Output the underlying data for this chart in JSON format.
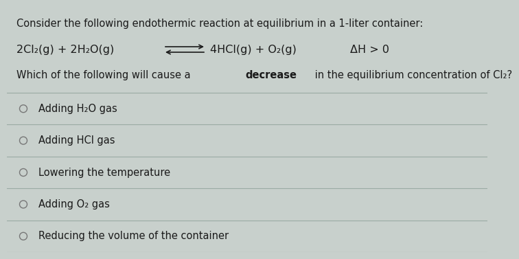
{
  "bg_color": "#c8d0cc",
  "text_color": "#1a1a1a",
  "header_text": "Consider the following endothermic reaction at equilibrium in a 1-liter container:",
  "eq_left": "2Cl₂(g) + 2H₂O(g)",
  "eq_right": "4HCl(g) + O₂(g)",
  "delta_h": "ΔH > 0",
  "question_pre": "Which of the following will cause a ",
  "question_bold": "decrease",
  "question_post": " in the equilibrium concentration of Cl₂?",
  "options": [
    "Adding H₂O gas",
    "Adding HCl gas",
    "Lowering the temperature",
    "Adding O₂ gas",
    "Reducing the volume of the container"
  ],
  "divider_color": "#9aaba4",
  "header_fontsize": 10.5,
  "equation_fontsize": 11.5,
  "question_fontsize": 10.5,
  "option_fontsize": 10.5
}
